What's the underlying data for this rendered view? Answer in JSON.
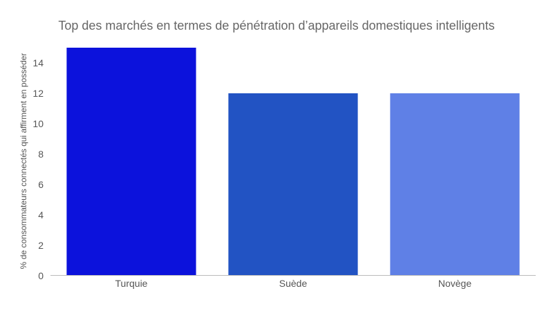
{
  "chart_data": {
    "type": "bar",
    "title": "Top des marchés en termes de pénétration d’appareils domestiques intelligents",
    "xlabel": "",
    "ylabel": "% de consommateurs connectés qui affirment en posséder",
    "categories": [
      "Turquie",
      "Suède",
      "Novège"
    ],
    "values": [
      15,
      12,
      12
    ],
    "colors": [
      "#0c12dc",
      "#2253c3",
      "#5f80e6"
    ],
    "ylim": [
      0,
      15
    ],
    "yticks": [
      0,
      2,
      4,
      6,
      8,
      10,
      12,
      14
    ],
    "grid": false,
    "legend": "none"
  }
}
